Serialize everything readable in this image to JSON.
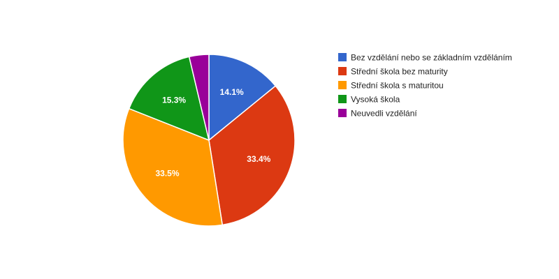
{
  "chart_data": {
    "type": "pie",
    "legend_position": "right",
    "slices": [
      {
        "label": "Bez vzdělání nebo se základním vzděláním",
        "value": 14.1,
        "value_label": "14.1%",
        "color": "#3366cc"
      },
      {
        "label": "Střední škola bez maturity",
        "value": 33.4,
        "value_label": "33.4%",
        "color": "#dc3912"
      },
      {
        "label": "Střední škola s maturitou",
        "value": 33.5,
        "value_label": "33.5%",
        "color": "#ff9900"
      },
      {
        "label": "Vysoká škola",
        "value": 15.3,
        "value_label": "15.3%",
        "color": "#109618"
      },
      {
        "label": "Neuvedli vzdělání",
        "value": 3.7,
        "value_label": "",
        "color": "#990099"
      }
    ]
  }
}
